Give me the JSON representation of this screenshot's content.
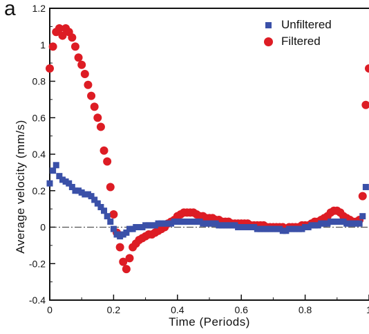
{
  "chart_data": {
    "type": "scatter",
    "panel_label": "a",
    "xlabel": "Time (Periods)",
    "ylabel": "Average velocity (mm/s)",
    "xlim": [
      0,
      1
    ],
    "ylim": [
      -0.4,
      1.2
    ],
    "x_ticks": [
      "0",
      "0.2",
      "0.4",
      "0.6",
      "0.8",
      "1"
    ],
    "y_ticks": [
      "-0.4",
      "-0.2",
      "0",
      "0.2",
      "0.4",
      "0.6",
      "0.8",
      "1",
      "1.2"
    ],
    "grid": false,
    "legend_position": "top-right",
    "zero_line": "dash-dot",
    "series": [
      {
        "name": "Unfiltered",
        "marker": "square",
        "color": "#3a50a8",
        "x": [
          0.0,
          0.01,
          0.02,
          0.03,
          0.04,
          0.05,
          0.06,
          0.07,
          0.08,
          0.09,
          0.1,
          0.11,
          0.12,
          0.13,
          0.14,
          0.15,
          0.16,
          0.17,
          0.18,
          0.19,
          0.2,
          0.21,
          0.22,
          0.23,
          0.24,
          0.25,
          0.26,
          0.27,
          0.28,
          0.29,
          0.3,
          0.31,
          0.32,
          0.33,
          0.34,
          0.35,
          0.36,
          0.37,
          0.38,
          0.39,
          0.4,
          0.41,
          0.42,
          0.43,
          0.44,
          0.45,
          0.46,
          0.47,
          0.48,
          0.49,
          0.5,
          0.51,
          0.52,
          0.53,
          0.54,
          0.55,
          0.56,
          0.57,
          0.58,
          0.59,
          0.6,
          0.61,
          0.62,
          0.63,
          0.64,
          0.65,
          0.66,
          0.67,
          0.68,
          0.69,
          0.7,
          0.71,
          0.72,
          0.73,
          0.74,
          0.75,
          0.76,
          0.77,
          0.78,
          0.79,
          0.8,
          0.81,
          0.82,
          0.83,
          0.84,
          0.85,
          0.86,
          0.87,
          0.88,
          0.89,
          0.9,
          0.91,
          0.92,
          0.93,
          0.94,
          0.95,
          0.96,
          0.97,
          0.98,
          0.99
        ],
        "y": [
          0.24,
          0.31,
          0.34,
          0.28,
          0.26,
          0.25,
          0.24,
          0.22,
          0.2,
          0.2,
          0.19,
          0.18,
          0.18,
          0.17,
          0.15,
          0.13,
          0.11,
          0.09,
          0.06,
          0.03,
          -0.01,
          -0.04,
          -0.05,
          -0.04,
          -0.03,
          -0.01,
          -0.01,
          0.0,
          0.0,
          0.0,
          0.01,
          0.01,
          0.01,
          0.01,
          0.02,
          0.02,
          0.02,
          0.02,
          0.02,
          0.03,
          0.03,
          0.03,
          0.03,
          0.03,
          0.03,
          0.03,
          0.03,
          0.03,
          0.02,
          0.02,
          0.02,
          0.02,
          0.02,
          0.01,
          0.01,
          0.01,
          0.01,
          0.01,
          0.01,
          0.0,
          0.0,
          0.0,
          0.0,
          0.0,
          0.0,
          -0.01,
          -0.01,
          -0.01,
          -0.01,
          -0.01,
          -0.01,
          -0.01,
          -0.01,
          -0.02,
          -0.02,
          -0.01,
          -0.01,
          -0.01,
          -0.01,
          -0.01,
          0.0,
          0.0,
          0.01,
          0.01,
          0.01,
          0.02,
          0.02,
          0.02,
          0.03,
          0.03,
          0.03,
          0.03,
          0.03,
          0.02,
          0.02,
          0.02,
          0.02,
          0.02,
          0.06,
          0.22
        ]
      },
      {
        "name": "Filtered",
        "marker": "circle",
        "color": "#dd1c24",
        "x": [
          0.0,
          0.01,
          0.02,
          0.03,
          0.04,
          0.05,
          0.06,
          0.07,
          0.08,
          0.09,
          0.1,
          0.11,
          0.12,
          0.13,
          0.14,
          0.15,
          0.16,
          0.17,
          0.18,
          0.19,
          0.2,
          0.21,
          0.22,
          0.23,
          0.24,
          0.25,
          0.26,
          0.27,
          0.28,
          0.29,
          0.3,
          0.31,
          0.32,
          0.33,
          0.34,
          0.35,
          0.36,
          0.37,
          0.38,
          0.39,
          0.4,
          0.41,
          0.42,
          0.43,
          0.44,
          0.45,
          0.46,
          0.47,
          0.48,
          0.49,
          0.5,
          0.51,
          0.52,
          0.53,
          0.54,
          0.55,
          0.56,
          0.57,
          0.58,
          0.59,
          0.6,
          0.61,
          0.62,
          0.63,
          0.64,
          0.65,
          0.66,
          0.67,
          0.68,
          0.69,
          0.7,
          0.71,
          0.72,
          0.73,
          0.74,
          0.75,
          0.76,
          0.77,
          0.78,
          0.79,
          0.8,
          0.81,
          0.82,
          0.83,
          0.84,
          0.85,
          0.86,
          0.87,
          0.88,
          0.89,
          0.9,
          0.91,
          0.92,
          0.93,
          0.94,
          0.95,
          0.96,
          0.97,
          0.98,
          0.99,
          1.0
        ],
        "y": [
          0.87,
          0.99,
          1.07,
          1.09,
          1.05,
          1.09,
          1.07,
          1.04,
          0.99,
          0.93,
          0.89,
          0.84,
          0.78,
          0.72,
          0.66,
          0.6,
          0.55,
          0.42,
          0.36,
          0.22,
          0.07,
          -0.03,
          -0.11,
          -0.19,
          -0.23,
          -0.17,
          -0.11,
          -0.09,
          -0.07,
          -0.06,
          -0.05,
          -0.04,
          -0.04,
          -0.03,
          -0.02,
          -0.01,
          0.0,
          0.02,
          0.03,
          0.04,
          0.06,
          0.07,
          0.08,
          0.08,
          0.08,
          0.08,
          0.07,
          0.06,
          0.06,
          0.05,
          0.05,
          0.05,
          0.04,
          0.04,
          0.03,
          0.03,
          0.03,
          0.02,
          0.02,
          0.02,
          0.02,
          0.02,
          0.02,
          0.01,
          0.01,
          0.01,
          0.01,
          0.01,
          0.0,
          0.0,
          0.0,
          0.0,
          0.0,
          0.0,
          -0.01,
          0.0,
          0.0,
          0.0,
          0.0,
          0.01,
          0.01,
          0.01,
          0.02,
          0.03,
          0.03,
          0.04,
          0.05,
          0.06,
          0.08,
          0.09,
          0.09,
          0.08,
          0.06,
          0.05,
          0.04,
          0.03,
          0.03,
          0.04,
          0.17,
          0.67,
          0.87
        ]
      }
    ]
  }
}
